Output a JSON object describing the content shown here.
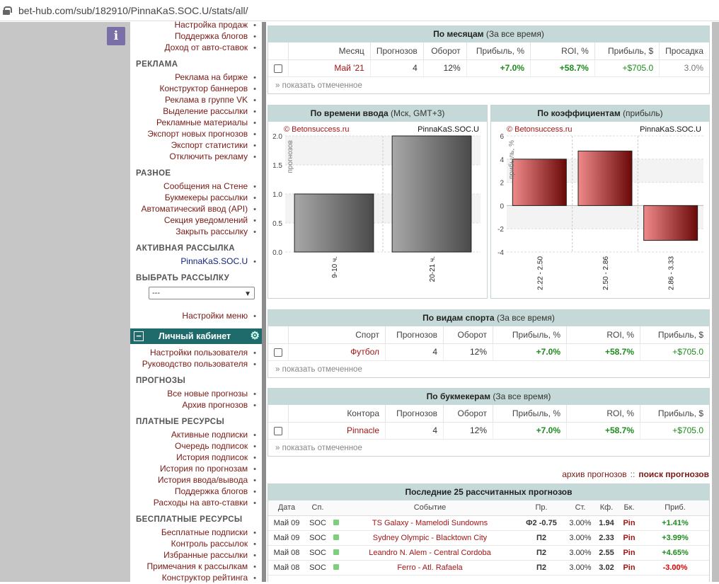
{
  "browser": {
    "url": "bet-hub.com/sub/182910/PinnaKaS.SOC.U/stats/all/"
  },
  "info_button": "i",
  "sidebar": {
    "top_items": [
      "Настройка продаж",
      "Поддержка блогов",
      "Доход от авто-ставок"
    ],
    "ads_header": "РЕКЛАМА",
    "ads_items": [
      "Реклама на бирже",
      "Конструктор баннеров",
      "Реклама в группе VK",
      "Выделение рассылки",
      "Рекламные материалы",
      "Экспорт новых прогнозов",
      "Экспорт статистики",
      "Отключить рекламу"
    ],
    "misc_header": "РАЗНОЕ",
    "misc_items": [
      "Сообщения на Стене",
      "Букмекеры рассылки",
      "Автоматический ввод (API)",
      "Секция уведомлений",
      "Закрыть рассылку"
    ],
    "active_header": "АКТИВНАЯ РАССЫЛКА",
    "active_item": "PinnaKaS.SOC.U",
    "choose_header": "ВЫБРАТЬ РАССЫЛКУ",
    "choose_value": "---",
    "menu_settings": "Настройки меню",
    "cabinet_label": "Личный кабинет",
    "user_items": [
      "Настройки пользователя",
      "Руководство пользователя"
    ],
    "forecasts_header": "ПРОГНОЗЫ",
    "forecasts_items": [
      "Все новые прогнозы",
      "Архив прогнозов"
    ],
    "paid_header": "ПЛАТНЫЕ РЕСУРСЫ",
    "paid_items": [
      "Активные подписки",
      "Очередь подписок",
      "История подписок",
      "История по прогнозам",
      "История ввода/вывода",
      "Поддержка блогов",
      "Расходы на авто-ставки"
    ],
    "free_header": "БЕСПЛАТНЫЕ РЕСУРСЫ",
    "free_items": [
      "Бесплатные подписки",
      "Контроль рассылок",
      "Избранные рассылки",
      "Примечания к рассылкам",
      "Конструктор рейтинга"
    ]
  },
  "months": {
    "title": "По месяцам",
    "subtitle": "(За все время)",
    "columns": [
      "Месяц",
      "Прогнозов",
      "Оборот",
      "Прибыль, %",
      "ROI, %",
      "Прибыль, $",
      "Просадка"
    ],
    "row": [
      "Май '21",
      "4",
      "12%",
      "+7.0%",
      "+58.7%",
      "+$705.0",
      "3.0%"
    ],
    "show_marked": "» показать отмеченное"
  },
  "time_chart": {
    "title": "По времени ввода",
    "subtitle": "(Мск, GMT+3)",
    "watermark": "© Betonsuccess.ru",
    "name": "PinnaKaS.SOC.U"
  },
  "coef_chart": {
    "title": "По коэффициентам",
    "subtitle": "(прибыль)",
    "watermark": "© Betonsuccess.ru",
    "name": "PinnaKaS.SOC.U"
  },
  "chart_data": [
    {
      "type": "bar",
      "categories": [
        "9-10 ч.",
        "20-21 ч."
      ],
      "values": [
        1,
        2
      ],
      "ylabel": "прогнозов",
      "ylim": [
        0,
        2
      ],
      "yticks": [
        "0.0",
        "0.5",
        "1.0",
        "1.5",
        "2.0"
      ],
      "color": "#6e6e6e"
    },
    {
      "type": "bar",
      "categories": [
        "2.22 - 2.50",
        "2.50 - 2.86",
        "2.86 - 3.33"
      ],
      "values": [
        4,
        4.7,
        -3
      ],
      "ylabel": "прибыль, %",
      "ylim": [
        -4,
        6
      ],
      "yticks": [
        "-4",
        "-2",
        "0",
        "2",
        "4",
        "6"
      ],
      "color": "#b01515"
    }
  ],
  "sports": {
    "title": "По видам спорта",
    "subtitle": "(За все время)",
    "columns": [
      "Спорт",
      "Прогнозов",
      "Оборот",
      "Прибыль, %",
      "ROI, %",
      "Прибыль, $"
    ],
    "row": [
      "Футбол",
      "4",
      "12%",
      "+7.0%",
      "+58.7%",
      "+$705.0"
    ],
    "show_marked": "» показать отмеченное"
  },
  "bookmakers": {
    "title": "По букмекерам",
    "subtitle": "(За все время)",
    "columns": [
      "Контора",
      "Прогнозов",
      "Оборот",
      "Прибыль, %",
      "ROI, %",
      "Прибыль, $"
    ],
    "row": [
      "Pinnacle",
      "4",
      "12%",
      "+7.0%",
      "+58.7%",
      "+$705.0"
    ],
    "show_marked": "» показать отмеченное"
  },
  "links": {
    "archive": "архив прогнозов",
    "sep": "::",
    "search": "поиск прогнозов"
  },
  "last25": {
    "title": "Последние 25 рассчитанных прогнозов",
    "columns": [
      "Дата",
      "Сп.",
      "Событие",
      "Пр.",
      "Ст.",
      "Кф.",
      "Бк.",
      "Приб."
    ],
    "rows": [
      [
        "Май 09",
        "SOC",
        "TS Galaxy - Mamelodi Sundowns",
        "Ф2 -0.75",
        "3.00%",
        "1.94",
        "Pin",
        "+1.41%"
      ],
      [
        "Май 09",
        "SOC",
        "Sydney Olympic - Blacktown City",
        "П2",
        "3.00%",
        "2.33",
        "Pin",
        "+3.99%"
      ],
      [
        "Май 08",
        "SOC",
        "Leandro N. Alem - Central Cordoba",
        "П2",
        "3.00%",
        "2.55",
        "Pin",
        "+4.65%"
      ],
      [
        "Май 08",
        "SOC",
        "Ferro - Atl. Rafaela",
        "П2",
        "3.00%",
        "3.02",
        "Pin",
        "-3.00%"
      ]
    ]
  }
}
